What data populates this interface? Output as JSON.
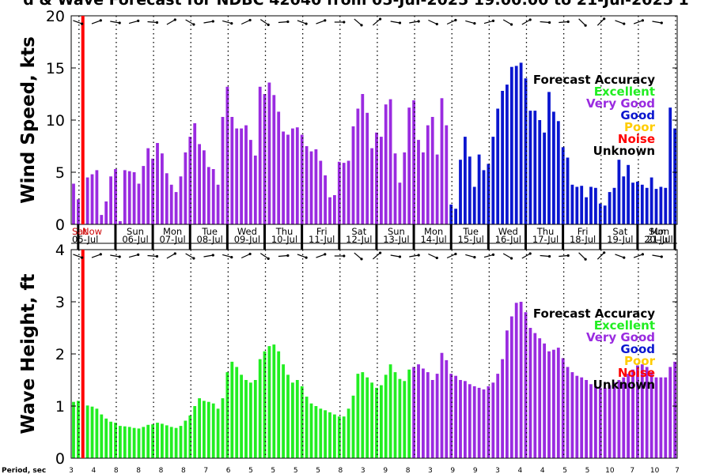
{
  "title": "d & Wave Forecast for NDBC 42040 from 05-Jul-2025 19:00:00 to 21-Jul-2025 1",
  "days": [
    {
      "dow": "Sat",
      "date": "05-Jul"
    },
    {
      "dow": "Sun",
      "date": "06-Jul"
    },
    {
      "dow": "Mon",
      "date": "07-Jul"
    },
    {
      "dow": "Tue",
      "date": "08-Jul"
    },
    {
      "dow": "Wed",
      "date": "09-Jul"
    },
    {
      "dow": "Thu",
      "date": "10-Jul"
    },
    {
      "dow": "Fri",
      "date": "11-Jul"
    },
    {
      "dow": "Sat",
      "date": "12-Jul"
    },
    {
      "dow": "Sun",
      "date": "13-Jul"
    },
    {
      "dow": "Mon",
      "date": "14-Jul"
    },
    {
      "dow": "Tue",
      "date": "15-Jul"
    },
    {
      "dow": "Wed",
      "date": "16-Jul"
    },
    {
      "dow": "Thu",
      "date": "17-Jul"
    },
    {
      "dow": "Fri",
      "date": "18-Jul"
    },
    {
      "dow": "Sat",
      "date": "19-Jul"
    },
    {
      "dow": "Sun",
      "date": "20-Jul"
    },
    {
      "dow": "Mon",
      "date": "21-Jul"
    }
  ],
  "now_label": "Now",
  "legend": {
    "title": "Forecast Accuracy",
    "items": [
      {
        "label": "Excellent",
        "color": "#22ee22"
      },
      {
        "label": "Very Good",
        "color": "#9a2be0"
      },
      {
        "label": "Good",
        "color": "#0a16cf"
      },
      {
        "label": "Poor",
        "color": "#ffcc00"
      },
      {
        "label": "Noise",
        "color": "#ff0000"
      },
      {
        "label": "Unknown",
        "color": "#000000"
      }
    ]
  },
  "period_label": "Period, sec",
  "period_values": [
    "3",
    "4",
    "8",
    "8",
    "8",
    "8",
    "7",
    "6",
    "5",
    "5",
    "5",
    "5",
    "8",
    "3",
    "9",
    "8",
    "3",
    "9",
    "9",
    "3",
    "4",
    "4",
    "5",
    "5",
    "10",
    "7",
    "10",
    "7"
  ],
  "chart_data": [
    {
      "type": "bar",
      "ylabel": "Wind Speed, kts",
      "ylim": [
        0,
        20
      ],
      "yticks": [
        0,
        5,
        10,
        15,
        20
      ],
      "grid": "dotted vertical at midnight",
      "x_start": "2025-07-05 19:00",
      "x_end": "2025-07-21 21:00",
      "x_step_hours": 3,
      "values": [
        3.9,
        2.4,
        0.4,
        4.5,
        4.8,
        5.2,
        0.9,
        2.2,
        4.6,
        5.3,
        0.3,
        5.2,
        5.1,
        5.0,
        3.9,
        5.6,
        7.3,
        6.3,
        7.8,
        6.8,
        4.9,
        3.8,
        3.1,
        4.6,
        6.9,
        8.4,
        9.7,
        7.7,
        7.1,
        5.5,
        5.3,
        3.8,
        10.3,
        13.2,
        10.3,
        9.2,
        9.2,
        9.5,
        8.1,
        6.6,
        13.2,
        12.5,
        13.6,
        12.4,
        10.8,
        8.9,
        8.6,
        9.2,
        9.3,
        8.6,
        7.5,
        7.0,
        7.2,
        6.1,
        4.7,
        2.6,
        2.8,
        6.0,
        5.9,
        6.1,
        9.4,
        11.1,
        12.5,
        10.7,
        7.3,
        8.8,
        8.4,
        11.5,
        12.0,
        6.8,
        4.0,
        6.9,
        11.2,
        11.9,
        8.1,
        6.9,
        9.5,
        10.3,
        6.7,
        12.1,
        9.5,
        1.9,
        1.5,
        6.2,
        8.4,
        6.5,
        3.6,
        6.7,
        5.2,
        5.8,
        8.4,
        11.1,
        12.8,
        13.4,
        15.1,
        15.2,
        15.5,
        14.0,
        10.9,
        10.9,
        10.0,
        8.8,
        12.7,
        10.8,
        9.9,
        7.4,
        6.4,
        3.8,
        3.6,
        3.7,
        2.6,
        3.6,
        3.5,
        2.0,
        1.8,
        3.1,
        3.5,
        6.2,
        4.6,
        5.7,
        4.0,
        4.1,
        3.8,
        3.5,
        4.5,
        3.4,
        3.6,
        3.5,
        11.2,
        9.2
      ],
      "series": [
        {
          "name": "Very Good",
          "from": 0,
          "to": 80,
          "color": "#9a2be0"
        },
        {
          "name": "Good",
          "from": 81,
          "to": 129,
          "color": "#0a16cf"
        }
      ]
    },
    {
      "type": "bar",
      "ylabel": "Wave Height, ft",
      "ylim": [
        0,
        4
      ],
      "yticks": [
        0,
        1,
        2,
        3,
        4
      ],
      "grid": "dotted vertical at midnight",
      "x_start": "2025-07-05 19:00",
      "x_end": "2025-07-21 21:00",
      "x_step_hours": 3,
      "values": [
        1.08,
        1.1,
        0.0,
        1.01,
        0.99,
        0.95,
        0.84,
        0.76,
        0.7,
        0.68,
        0.62,
        0.61,
        0.6,
        0.58,
        0.57,
        0.6,
        0.64,
        0.65,
        0.68,
        0.66,
        0.63,
        0.6,
        0.58,
        0.62,
        0.72,
        0.82,
        1.0,
        1.15,
        1.1,
        1.08,
        1.05,
        0.95,
        1.15,
        1.65,
        1.85,
        1.75,
        1.6,
        1.5,
        1.45,
        1.5,
        1.9,
        2.05,
        2.15,
        2.18,
        2.05,
        1.8,
        1.6,
        1.45,
        1.5,
        1.38,
        1.18,
        1.05,
        1.0,
        0.95,
        0.92,
        0.88,
        0.84,
        0.8,
        0.8,
        0.95,
        1.2,
        1.62,
        1.65,
        1.55,
        1.45,
        1.35,
        1.4,
        1.6,
        1.8,
        1.65,
        1.52,
        1.48,
        1.7,
        1.75,
        1.8,
        1.72,
        1.65,
        1.5,
        1.62,
        2.02,
        1.88,
        1.62,
        1.58,
        1.5,
        1.48,
        1.42,
        1.38,
        1.35,
        1.32,
        1.38,
        1.45,
        1.62,
        1.9,
        2.45,
        2.72,
        2.98,
        3.0,
        2.8,
        2.5,
        2.4,
        2.3,
        2.2,
        2.05,
        2.08,
        2.12,
        1.92,
        1.75,
        1.65,
        1.58,
        1.55,
        1.5,
        1.42,
        1.38,
        1.35,
        1.35,
        1.4,
        1.45,
        1.5,
        1.55,
        1.62,
        1.7,
        1.78,
        1.8,
        1.75,
        1.65,
        1.55,
        1.55,
        1.55,
        1.75,
        1.85
      ],
      "series": [
        {
          "name": "Excellent",
          "from": 0,
          "to": 72,
          "color": "#22ee22"
        },
        {
          "name": "Very Good",
          "from": 73,
          "to": 129,
          "color": "#9a2be0"
        }
      ]
    }
  ]
}
